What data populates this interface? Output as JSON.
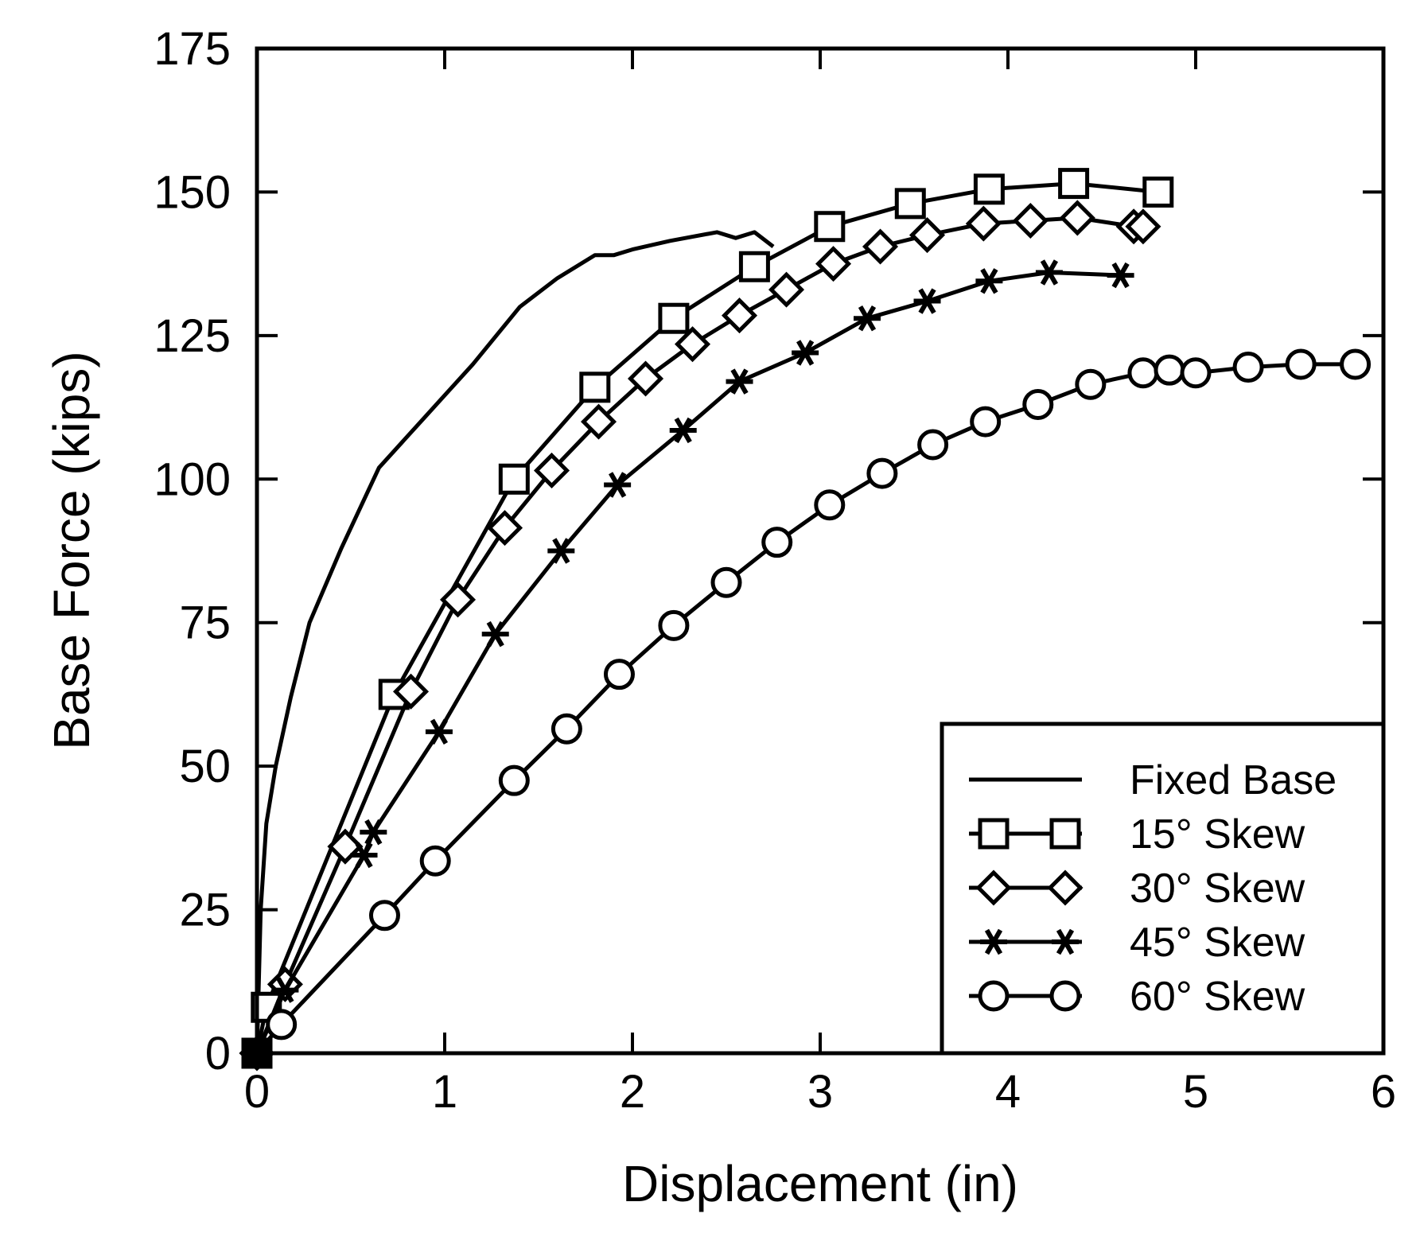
{
  "chart_data": {
    "type": "line",
    "title": "",
    "xlabel": "Displacement (in)",
    "ylabel": "Base Force (kips)",
    "xlim": [
      0,
      6
    ],
    "ylim": [
      0,
      175
    ],
    "xticks": [
      0,
      1,
      2,
      3,
      4,
      5,
      6
    ],
    "yticks": [
      0,
      25,
      50,
      75,
      100,
      125,
      150,
      175
    ],
    "grid": false,
    "legend_position": "bottom-right",
    "series": [
      {
        "name": "Fixed Base",
        "marker": "none",
        "x": [
          0,
          0.02,
          0.05,
          0.1,
          0.18,
          0.28,
          0.45,
          0.65,
          0.9,
          1.15,
          1.4,
          1.6,
          1.8,
          1.85,
          1.9,
          2.0,
          2.2,
          2.45,
          2.55,
          2.65,
          2.75
        ],
        "y": [
          0,
          25,
          40,
          50,
          62,
          75,
          88,
          102,
          111,
          120,
          130,
          135,
          139,
          139,
          139,
          140,
          141.5,
          143,
          142,
          143,
          140.5
        ]
      },
      {
        "name": "15° Skew",
        "marker": "square",
        "x": [
          0,
          0.05,
          0.73,
          1.37,
          1.8,
          2.22,
          2.65,
          3.05,
          3.48,
          3.9,
          4.35,
          4.8
        ],
        "y": [
          0,
          8,
          62.5,
          100,
          116,
          128,
          137,
          144,
          148,
          150.5,
          151.5,
          150
        ]
      },
      {
        "name": "30° Skew",
        "marker": "diamond",
        "x": [
          0,
          0.15,
          0.47,
          0.82,
          1.07,
          1.32,
          1.57,
          1.82,
          2.07,
          2.32,
          2.57,
          2.82,
          3.07,
          3.32,
          3.57,
          3.87,
          4.12,
          4.37,
          4.67,
          4.72
        ],
        "y": [
          0,
          12,
          36,
          63,
          79,
          91.5,
          101.5,
          110,
          117.5,
          123.5,
          128.5,
          133,
          137.5,
          140.5,
          142.5,
          144.5,
          145,
          145.5,
          144,
          144
        ]
      },
      {
        "name": "45° Skew",
        "marker": "star",
        "x": [
          0,
          0.15,
          0.57,
          0.62,
          0.97,
          1.27,
          1.62,
          1.92,
          2.27,
          2.57,
          2.92,
          3.25,
          3.57,
          3.9,
          4.22,
          4.6
        ],
        "y": [
          0,
          11,
          34.5,
          38.5,
          56,
          73,
          87.5,
          99,
          108.5,
          117,
          122,
          128,
          131,
          134.5,
          136,
          135.5
        ]
      },
      {
        "name": "60° Skew",
        "marker": "circle",
        "x": [
          0,
          0.13,
          0.68,
          0.95,
          1.37,
          1.65,
          1.93,
          2.22,
          2.5,
          2.77,
          3.05,
          3.33,
          3.6,
          3.88,
          4.16,
          4.44,
          4.72,
          4.86,
          5.0,
          5.28,
          5.56,
          5.85
        ],
        "y": [
          0,
          5,
          24,
          33.5,
          47.5,
          56.5,
          66,
          74.5,
          82,
          89,
          95.5,
          101,
          106,
          110,
          113,
          116.5,
          118.5,
          119,
          118.5,
          119.5,
          120,
          120
        ]
      }
    ]
  }
}
